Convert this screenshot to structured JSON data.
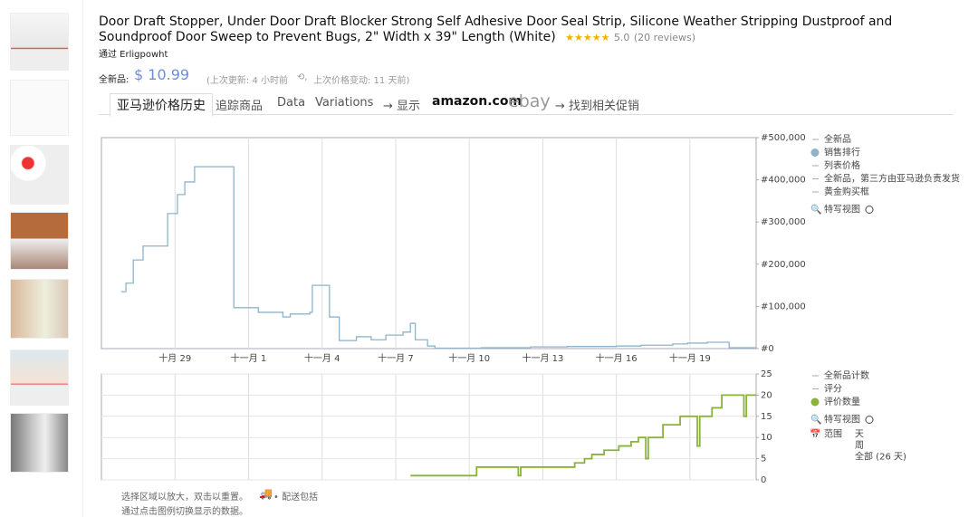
{
  "header": {
    "title": "Door Draft Stopper, Under Door Draft Blocker Strong Self Adhesive Door Seal Strip, Silicone Weather Stripping Dustproof and Soundproof Door Sweep to Prevent Bugs, 2\" Width x 39\" Length (White)",
    "rating": "5.0",
    "reviews": "(20 reviews)",
    "seller": "通过 Erligpowht",
    "price_label": "全新品:",
    "price": "$ 10.99",
    "update": "(上次更新:  4 小时前",
    "price_change": "上次价格变动: 11 天前)"
  },
  "tabs": [
    "亚马逊价格历史",
    "追踪商品",
    "Data",
    "Variations",
    "→ 显示",
    "amazon.com",
    "ebay",
    "→ 找到相关促销"
  ],
  "chart_data": [
    {
      "type": "line",
      "step": true,
      "grid": "x",
      "xlim": [
        26,
        52.7
      ],
      "xticks": [
        {
          "value": 29,
          "label": "十月 29"
        },
        {
          "value": 32,
          "label": "十一月 1"
        },
        {
          "value": 35,
          "label": "十一月 4"
        },
        {
          "value": 38,
          "label": "十一月 7"
        },
        {
          "value": 41,
          "label": "十一月 10"
        },
        {
          "value": 44,
          "label": "十一月 13"
        },
        {
          "value": 47,
          "label": "十一月 16"
        },
        {
          "value": 50,
          "label": "十一月 19"
        }
      ],
      "ylim": [
        0,
        500000
      ],
      "yticks": [
        {
          "value": 500000,
          "label": "#500,000"
        },
        {
          "value": 400000,
          "label": "#400,000"
        },
        {
          "value": 300000,
          "label": "#300,000"
        },
        {
          "value": 200000,
          "label": "#200,000"
        },
        {
          "value": 100000,
          "label": "#100,000"
        },
        {
          "value": 0,
          "label": "#0"
        }
      ],
      "series": [
        {
          "name": "全新品",
          "color": "#aaaaaa",
          "visible": false
        },
        {
          "name": "销售排行",
          "color": "#8fb3c9",
          "visible": true,
          "x": [
            26.8,
            27.0,
            27.3,
            27.7,
            28.7,
            29.1,
            29.4,
            29.8,
            31.4,
            32.4,
            33.4,
            33.7,
            34.5,
            34.6,
            35.3,
            35.7,
            36.4,
            37.0,
            37.6,
            38.3,
            38.6,
            38.8,
            39.3,
            39.6,
            41.5,
            43.5,
            45.0,
            47.0,
            48.0,
            49.3,
            49.9,
            50.7,
            51.6
          ],
          "values": [
            135000,
            155000,
            210000,
            243000,
            320000,
            365000,
            395000,
            431000,
            97000,
            86000,
            75000,
            82000,
            86000,
            150000,
            75000,
            19000,
            28000,
            21000,
            32000,
            39000,
            60000,
            21000,
            6000,
            1000,
            2000,
            4000,
            5000,
            6000,
            8000,
            11000,
            13000,
            15000,
            2000
          ]
        },
        {
          "name": "列表价格",
          "color": "#aaaaaa",
          "visible": false
        },
        {
          "name": "全新品，第三方由亚马逊负责发货",
          "color": "#aaaaaa",
          "visible": false
        },
        {
          "name": "黄金购买框",
          "color": "#aaaaaa",
          "visible": false
        }
      ],
      "closeup": "特写视图"
    },
    {
      "type": "line",
      "step": true,
      "grid": "both",
      "xlim": [
        26,
        52.7
      ],
      "ylim": [
        0,
        25
      ],
      "yticks": [
        25,
        20,
        15,
        10,
        5,
        0
      ],
      "series": [
        {
          "name": "全新品计数",
          "color": "#aaaaaa",
          "visible": false
        },
        {
          "name": "评分",
          "color": "#aaaaaa",
          "visible": false
        },
        {
          "name": "评价数量",
          "color": "#8ab33a",
          "visible": true,
          "x": [
            38.6,
            41.3,
            43.0,
            43.1,
            45.3,
            45.7,
            46.0,
            46.5,
            47.1,
            47.6,
            47.9,
            48.2,
            48.3,
            48.9,
            49.6,
            50.3,
            50.4,
            50.9,
            51.3,
            52.2,
            52.3
          ],
          "values": [
            1,
            3,
            1,
            3,
            4,
            5,
            6,
            7,
            8,
            9,
            10,
            5,
            10,
            13,
            15,
            8,
            15,
            17,
            20,
            15,
            20
          ]
        }
      ],
      "closeup": "特写视图",
      "range_label": "范围",
      "ranges": [
        "天",
        "周",
        "全部 (26 天)"
      ]
    }
  ],
  "footer": [
    "选择区域以放大，双击以重置。",
    "• 配送包括",
    "通过点击图例切换显示的数据。"
  ]
}
